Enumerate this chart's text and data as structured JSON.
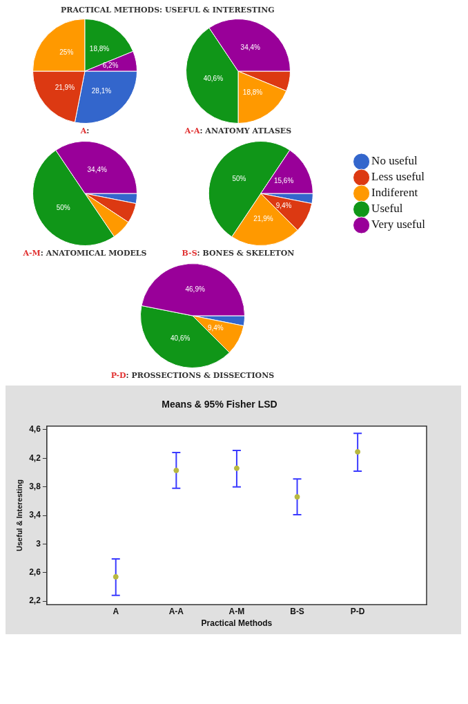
{
  "chart_data": [
    {
      "type": "pie",
      "title": "A:",
      "annotations": [
        "PRACTICAL METHODS: USEFUL & INTERESTING"
      ],
      "categories": [
        null,
        null,
        null,
        null,
        null
      ],
      "values": [
        28.1,
        21.9,
        25,
        18.8,
        6.2
      ],
      "colors": [
        "#3366cc",
        "#dc3912",
        "#ff9900",
        "#109618",
        "#990099"
      ],
      "value_labels": [
        "28,1%",
        "21,9%",
        "25%",
        "18,8%",
        "6,2%"
      ]
    },
    {
      "type": "pie",
      "title": "A-A: ANATOMY ATLASES",
      "categories": [
        null,
        null,
        null,
        null,
        null
      ],
      "values": [
        0,
        6.2,
        18.8,
        40.6,
        34.4
      ],
      "colors": [
        "#3366cc",
        "#dc3912",
        "#ff9900",
        "#109618",
        "#990099"
      ],
      "value_labels": [
        null,
        null,
        "18,8%",
        "40,6%",
        "34,4%"
      ]
    },
    {
      "type": "pie",
      "title": "A-M: ANATOMICAL MODELS",
      "categories": [
        null,
        null,
        null,
        null,
        null
      ],
      "values": [
        3.1,
        6.2,
        6.2,
        50,
        34.4
      ],
      "colors": [
        "#3366cc",
        "#dc3912",
        "#ff9900",
        "#109618",
        "#990099"
      ],
      "value_labels": [
        null,
        null,
        null,
        "50%",
        "34,4%"
      ]
    },
    {
      "type": "pie",
      "title": "B-S: BONES & SKELETON",
      "categories": [
        "No useful",
        "Less useful",
        "Indiferent",
        "Useful",
        "Very useful"
      ],
      "values": [
        3.1,
        9.4,
        21.9,
        50,
        15.6
      ],
      "colors": [
        "#3366cc",
        "#dc3912",
        "#ff9900",
        "#109618",
        "#990099"
      ],
      "value_labels": [
        null,
        "9,4%",
        "21,9%",
        "50%",
        "15,6%"
      ],
      "legend": "right"
    },
    {
      "type": "pie",
      "title": "P-D: PROSSECTIONS & DISSECTIONS",
      "categories": [
        null,
        null,
        null,
        null,
        null
      ],
      "values": [
        3.1,
        0,
        9.4,
        40.6,
        46.9
      ],
      "colors": [
        "#3366cc",
        "#dc3912",
        "#ff9900",
        "#109618",
        "#990099"
      ],
      "value_labels": [
        null,
        null,
        "9,4%",
        "40,6%",
        "46,9%"
      ]
    },
    {
      "type": "scatter",
      "title": "Means & 95% Fisher LSD",
      "xlabel": "Practical Methods",
      "ylabel": "Useful & Interesting",
      "categories": [
        "A",
        "A-A",
        "A-M",
        "B-S",
        "P-D"
      ],
      "series": [
        {
          "color": "#b8b840",
          "values": [
            2.54,
            4.03,
            4.06,
            3.66,
            4.29
          ],
          "errors": [
            [
              2.28,
              2.79
            ],
            [
              3.78,
              4.28
            ],
            [
              3.8,
              4.31
            ],
            [
              3.41,
              3.91
            ],
            [
              4.02,
              4.55
            ]
          ]
        }
      ],
      "ylim": [
        2.15,
        4.65
      ],
      "yticks": [
        {
          "value": 2.2,
          "label": "2,2"
        },
        {
          "value": 2.6,
          "label": "2,6"
        },
        {
          "value": 3,
          "label": "3"
        },
        {
          "value": 3.4,
          "label": "3,4"
        },
        {
          "value": 3.8,
          "label": "3,8"
        },
        {
          "value": 4.2,
          "label": "4,2"
        },
        {
          "value": 4.6,
          "label": "4,6"
        }
      ],
      "grid": false,
      "marker": "circle"
    }
  ]
}
